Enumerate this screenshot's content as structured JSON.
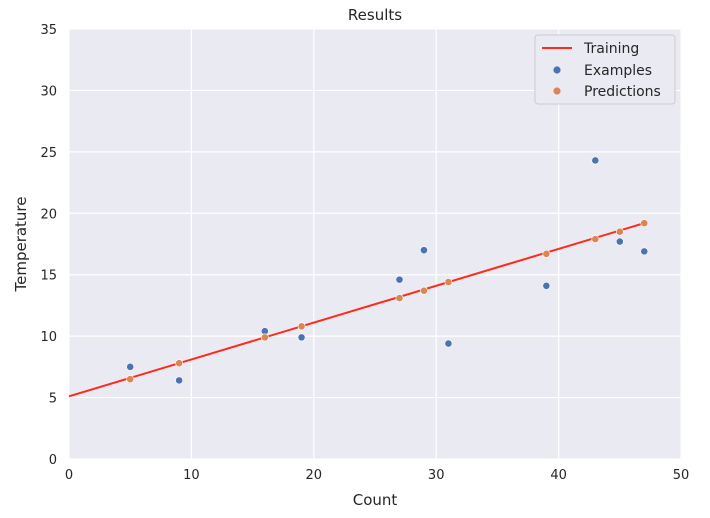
{
  "chart_data": {
    "type": "scatter",
    "title": "Results",
    "xlabel": "Count",
    "ylabel": "Temperature",
    "xlim": [
      0,
      50
    ],
    "ylim": [
      0,
      35
    ],
    "xticks": [
      0,
      10,
      20,
      30,
      40,
      50
    ],
    "yticks": [
      0,
      5,
      10,
      15,
      20,
      25,
      30,
      35
    ],
    "grid": true,
    "legend_position": "top-right",
    "series": [
      {
        "name": "Training",
        "kind": "line",
        "color": "#ff2a1a",
        "x": [
          0,
          47
        ],
        "y": [
          5.1,
          19.2
        ]
      },
      {
        "name": "Examples",
        "kind": "scatter",
        "color": "#4c72b0",
        "x": [
          5,
          9,
          16,
          19,
          27,
          29,
          31,
          39,
          43,
          45,
          47
        ],
        "y": [
          7.5,
          6.4,
          10.4,
          9.9,
          14.6,
          17.0,
          9.4,
          14.1,
          24.3,
          17.7,
          16.9
        ]
      },
      {
        "name": "Predictions",
        "kind": "scatter",
        "color": "#dd8452",
        "x": [
          5,
          9,
          16,
          19,
          27,
          29,
          31,
          39,
          43,
          45,
          47
        ],
        "y": [
          6.5,
          7.8,
          9.9,
          10.8,
          13.1,
          13.7,
          14.4,
          16.7,
          17.9,
          18.5,
          19.2
        ]
      }
    ]
  }
}
